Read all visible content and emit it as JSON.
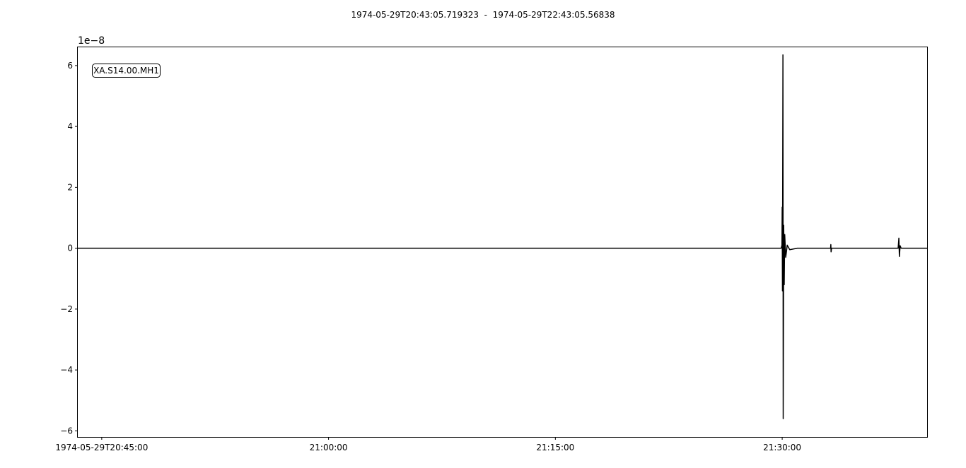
{
  "chart_data": {
    "type": "line",
    "title": "1974-05-29T20:43:05.719323  -  1974-05-29T22:43:05.56838",
    "station_label": "XA.S14.00.MH1",
    "y_scale_label": "1e−8",
    "xlabel": "",
    "ylabel": "",
    "y_multiplier": 1e-08,
    "x_time_range": [
      "1974-05-29T20:43:25",
      "1974-05-29T21:39:35"
    ],
    "ylim": [
      -6.2,
      6.6
    ],
    "x_ticks": [
      {
        "time": "1974-05-29T20:45:00",
        "label": "1974-05-29T20:45:00"
      },
      {
        "time": "1974-05-29T21:00:00",
        "label": "21:00:00"
      },
      {
        "time": "1974-05-29T21:15:00",
        "label": "21:15:00"
      },
      {
        "time": "1974-05-29T21:30:00",
        "label": "21:30:00"
      }
    ],
    "y_ticks": [
      {
        "value": 6,
        "label": "6"
      },
      {
        "value": 4,
        "label": "4"
      },
      {
        "value": 2,
        "label": "2"
      },
      {
        "value": 0,
        "label": "0"
      },
      {
        "value": -2,
        "label": "−2"
      },
      {
        "value": -4,
        "label": "−4"
      },
      {
        "value": -6,
        "label": "−6"
      }
    ],
    "series": [
      {
        "color": "#000000",
        "points": [
          [
            "1974-05-29T20:43:25",
            0.0
          ],
          [
            "1974-05-29T21:29:56",
            0.0
          ],
          [
            "1974-05-29T21:29:59",
            0.1
          ],
          [
            "1974-05-29T21:30:00",
            1.35
          ],
          [
            "1974-05-29T21:30:01",
            -1.4
          ],
          [
            "1974-05-29T21:30:03",
            6.35
          ],
          [
            "1974-05-29T21:30:04",
            -5.6
          ],
          [
            "1974-05-29T21:30:06",
            0.75
          ],
          [
            "1974-05-29T21:30:08",
            -1.2
          ],
          [
            "1974-05-29T21:30:10",
            0.45
          ],
          [
            "1974-05-29T21:30:14",
            -0.3
          ],
          [
            "1974-05-29T21:30:20",
            0.1
          ],
          [
            "1974-05-29T21:30:30",
            -0.05
          ],
          [
            "1974-05-29T21:31:00",
            0.0
          ],
          [
            "1974-05-29T21:33:12",
            0.0
          ],
          [
            "1974-05-29T21:33:13",
            0.12
          ],
          [
            "1974-05-29T21:33:14",
            -0.12
          ],
          [
            "1974-05-29T21:33:16",
            0.0
          ],
          [
            "1974-05-29T21:37:40",
            0.0
          ],
          [
            "1974-05-29T21:37:43",
            0.33
          ],
          [
            "1974-05-29T21:37:45",
            -0.27
          ],
          [
            "1974-05-29T21:37:48",
            0.08
          ],
          [
            "1974-05-29T21:37:52",
            0.0
          ],
          [
            "1974-05-29T21:39:35",
            0.0
          ]
        ]
      }
    ],
    "grid": false,
    "legend": "top-left"
  }
}
